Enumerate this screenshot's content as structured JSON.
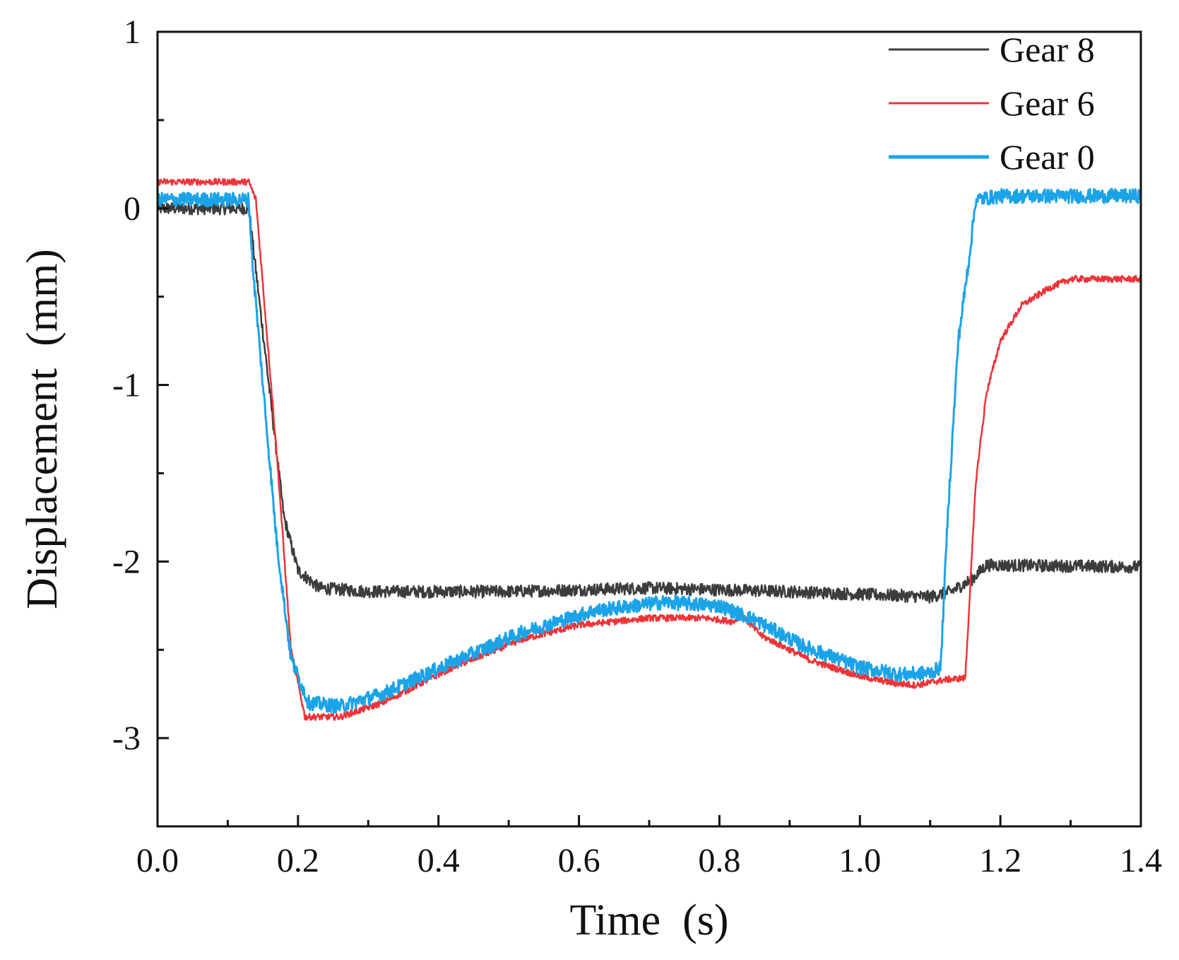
{
  "chart_data": {
    "type": "line",
    "xlabel": "Time  (s)",
    "ylabel": "Displacement  (mm)",
    "xlim": [
      0.0,
      1.4
    ],
    "ylim": [
      -3.5,
      1.0
    ],
    "x_ticks": [
      0.0,
      0.2,
      0.4,
      0.6,
      0.8,
      1.0,
      1.2,
      1.4
    ],
    "x_tick_labels": [
      "0.0",
      "0.2",
      "0.4",
      "0.6",
      "0.8",
      "1.0",
      "1.2",
      "1.4"
    ],
    "x_minor_ticks": [
      0.1,
      0.3,
      0.5,
      0.7,
      0.9,
      1.1,
      1.3
    ],
    "y_ticks": [
      1,
      0,
      -1,
      -2,
      -3
    ],
    "y_tick_labels": [
      "1",
      "0",
      "-1",
      "-2",
      "-3"
    ],
    "y_minor_ticks": [
      0.5,
      -0.5,
      -1.5,
      -2.5
    ],
    "grid": false,
    "legend_position": "top-right",
    "series": [
      {
        "name": "Gear 8",
        "color": "#3c3c3c",
        "noise": 0.035,
        "points": [
          [
            0.0,
            0.0
          ],
          [
            0.13,
            0.0
          ],
          [
            0.15,
            -0.7
          ],
          [
            0.18,
            -1.75
          ],
          [
            0.2,
            -2.05
          ],
          [
            0.23,
            -2.15
          ],
          [
            0.3,
            -2.17
          ],
          [
            0.5,
            -2.17
          ],
          [
            0.7,
            -2.15
          ],
          [
            0.9,
            -2.17
          ],
          [
            1.1,
            -2.2
          ],
          [
            1.13,
            -2.17
          ],
          [
            1.16,
            -2.1
          ],
          [
            1.18,
            -2.02
          ],
          [
            1.4,
            -2.03
          ]
        ]
      },
      {
        "name": "Gear 6",
        "color": "#ee3338",
        "noise": 0.018,
        "points": [
          [
            0.0,
            0.15
          ],
          [
            0.13,
            0.15
          ],
          [
            0.14,
            0.05
          ],
          [
            0.17,
            -1.4
          ],
          [
            0.19,
            -2.5
          ],
          [
            0.21,
            -2.88
          ],
          [
            0.26,
            -2.88
          ],
          [
            0.32,
            -2.8
          ],
          [
            0.42,
            -2.6
          ],
          [
            0.52,
            -2.44
          ],
          [
            0.6,
            -2.36
          ],
          [
            0.7,
            -2.32
          ],
          [
            0.78,
            -2.32
          ],
          [
            0.82,
            -2.34
          ],
          [
            0.83,
            -2.3
          ],
          [
            0.86,
            -2.42
          ],
          [
            0.93,
            -2.56
          ],
          [
            1.0,
            -2.65
          ],
          [
            1.05,
            -2.69
          ],
          [
            1.08,
            -2.7
          ],
          [
            1.12,
            -2.67
          ],
          [
            1.15,
            -2.66
          ],
          [
            1.155,
            -2.3
          ],
          [
            1.165,
            -1.55
          ],
          [
            1.18,
            -1.05
          ],
          [
            1.2,
            -0.75
          ],
          [
            1.23,
            -0.55
          ],
          [
            1.27,
            -0.45
          ],
          [
            1.3,
            -0.4
          ],
          [
            1.4,
            -0.4
          ]
        ]
      },
      {
        "name": "Gear 0",
        "color": "#1ba3e8",
        "noise": 0.04,
        "points": [
          [
            0.0,
            0.05
          ],
          [
            0.13,
            0.05
          ],
          [
            0.135,
            -0.3
          ],
          [
            0.15,
            -1.0
          ],
          [
            0.17,
            -1.9
          ],
          [
            0.19,
            -2.55
          ],
          [
            0.215,
            -2.8
          ],
          [
            0.26,
            -2.82
          ],
          [
            0.32,
            -2.75
          ],
          [
            0.42,
            -2.57
          ],
          [
            0.52,
            -2.4
          ],
          [
            0.62,
            -2.28
          ],
          [
            0.72,
            -2.23
          ],
          [
            0.8,
            -2.25
          ],
          [
            0.85,
            -2.33
          ],
          [
            0.92,
            -2.48
          ],
          [
            1.0,
            -2.6
          ],
          [
            1.06,
            -2.64
          ],
          [
            1.1,
            -2.63
          ],
          [
            1.115,
            -2.6
          ],
          [
            1.125,
            -1.75
          ],
          [
            1.14,
            -0.75
          ],
          [
            1.155,
            -0.3
          ],
          [
            1.165,
            0.05
          ],
          [
            1.2,
            0.07
          ],
          [
            1.4,
            0.07
          ]
        ]
      }
    ]
  }
}
